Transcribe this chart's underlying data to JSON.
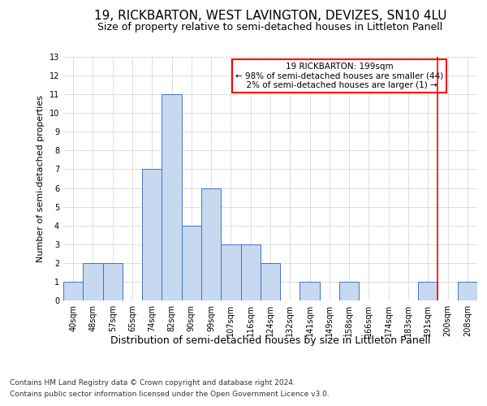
{
  "title": "19, RICKBARTON, WEST LAVINGTON, DEVIZES, SN10 4LU",
  "subtitle": "Size of property relative to semi-detached houses in Littleton Panell",
  "xlabel_bottom": "Distribution of semi-detached houses by size in Littleton Panell",
  "ylabel": "Number of semi-detached properties",
  "footer1": "Contains HM Land Registry data © Crown copyright and database right 2024.",
  "footer2": "Contains public sector information licensed under the Open Government Licence v3.0.",
  "categories": [
    "40sqm",
    "48sqm",
    "57sqm",
    "65sqm",
    "74sqm",
    "82sqm",
    "90sqm",
    "99sqm",
    "107sqm",
    "116sqm",
    "124sqm",
    "132sqm",
    "141sqm",
    "149sqm",
    "158sqm",
    "166sqm",
    "174sqm",
    "183sqm",
    "191sqm",
    "200sqm",
    "208sqm"
  ],
  "values": [
    1,
    2,
    2,
    0,
    7,
    11,
    4,
    6,
    3,
    3,
    2,
    0,
    1,
    0,
    1,
    0,
    0,
    0,
    1,
    0,
    1
  ],
  "bar_color": "#c6d9f0",
  "bar_edge_color": "#4472c4",
  "vline_color": "red",
  "annotation_box_edge_color": "red",
  "property_label": "19 RICKBARTON: 199sqm",
  "pct_smaller": 98,
  "n_smaller": 44,
  "pct_larger": 2,
  "n_larger": 1,
  "vline_index": 18.5,
  "ylim": [
    0,
    13
  ],
  "yticks": [
    0,
    1,
    2,
    3,
    4,
    5,
    6,
    7,
    8,
    9,
    10,
    11,
    12,
    13
  ],
  "grid_color": "#d9d9d9",
  "background_color": "#ffffff",
  "title_fontsize": 11,
  "subtitle_fontsize": 9,
  "ylabel_fontsize": 8,
  "tick_fontsize": 7,
  "annotation_fontsize": 7.5,
  "footer_fontsize": 6.5,
  "xlabel_bottom_fontsize": 9
}
